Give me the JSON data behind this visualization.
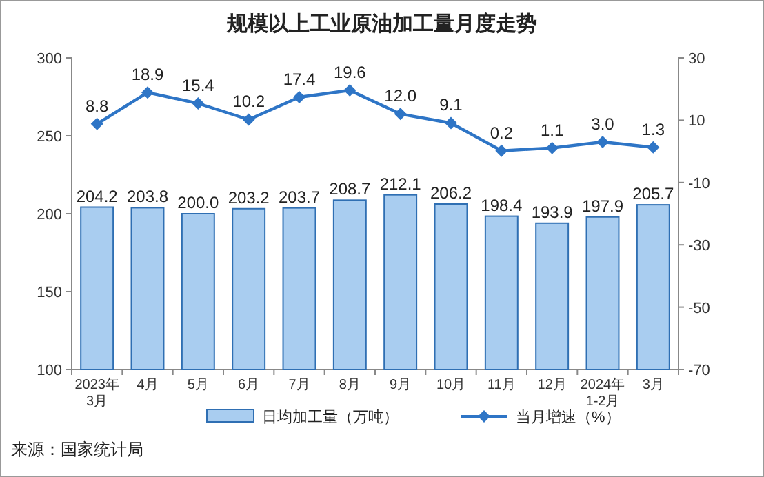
{
  "chart_data": {
    "type": "bar",
    "title": "规模以上工业原油加工量月度走势",
    "categories": [
      "2023年\n3月",
      "4月",
      "5月",
      "6月",
      "7月",
      "8月",
      "9月",
      "10月",
      "11月",
      "12月",
      "2024年\n1-2月",
      "3月"
    ],
    "series": [
      {
        "name": "日均加工量（万吨）",
        "color": "#a9cdf0",
        "values": [
          204.2,
          203.8,
          200.0,
          203.2,
          203.7,
          208.7,
          212.1,
          206.2,
          198.4,
          193.9,
          197.9,
          205.7
        ],
        "value_labels": [
          "204.2",
          "203.8",
          "200.0",
          "203.2",
          "203.7",
          "208.7",
          "212.1",
          "206.2",
          "198.4",
          "193.9",
          "197.9",
          "205.7"
        ]
      },
      {
        "name": "当月增速（%）",
        "type": "line",
        "axis": "y2",
        "color": "#2e75c6",
        "values": [
          8.8,
          18.9,
          15.4,
          10.2,
          17.4,
          19.6,
          12.0,
          9.1,
          0.2,
          1.1,
          3.0,
          1.3
        ],
        "value_labels": [
          "8.8",
          "18.9",
          "15.4",
          "10.2",
          "17.4",
          "19.6",
          "12.0",
          "9.1",
          "0.2",
          "1.1",
          "3.0",
          "1.3"
        ]
      }
    ],
    "ylim": [
      100,
      300
    ],
    "yticks": [
      100,
      150,
      200,
      250,
      300
    ],
    "y2lim": [
      -70,
      30
    ],
    "y2ticks": [
      30,
      10,
      -10,
      -30,
      -50,
      -70
    ],
    "marker": "diamond",
    "legend": "bottom",
    "annotations": [
      "来源：国家统计局"
    ]
  }
}
